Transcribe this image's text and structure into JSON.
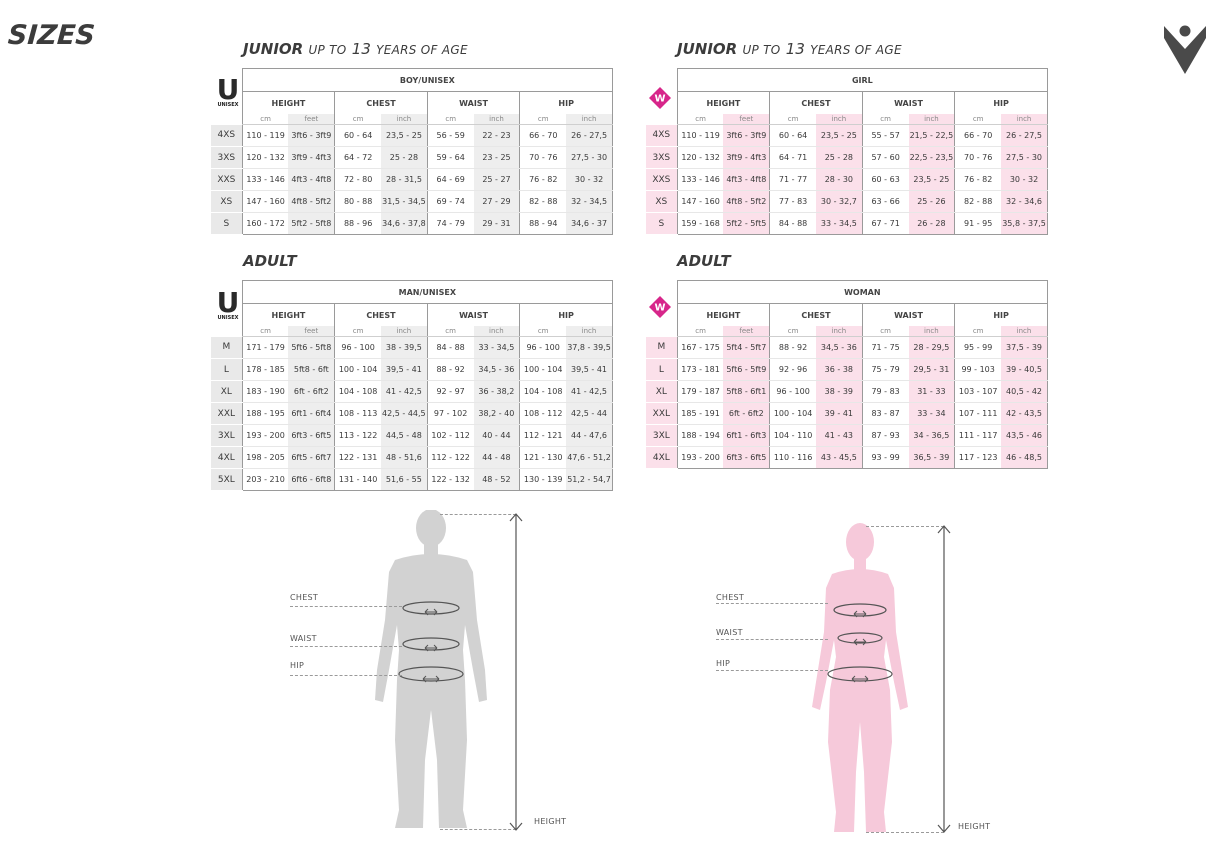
{
  "page": {
    "title": "SIZES",
    "logo_icon": "macron-logo-icon"
  },
  "titles": {
    "junior_main": "JUNIOR",
    "junior_sub_pre": "UP TO",
    "junior_sub_num": "13",
    "junior_sub_post": "YEARS OF AGE",
    "adult_main": "ADULT"
  },
  "badges": {
    "unisex_letter": "U",
    "unisex_label": "UNISEX",
    "woman_letter": "W"
  },
  "colors": {
    "male_alt": "#eeeeee",
    "female_alt": "#fbe0ea",
    "female_figure": "#f6c9da",
    "male_figure": "#d2d2d2",
    "woman_badge": "#d7268a"
  },
  "table_headers": {
    "columns": [
      "HEIGHT",
      "CHEST",
      "WAIST",
      "HIP"
    ],
    "units": [
      "cm",
      "feet",
      "cm",
      "inch",
      "cm",
      "inch",
      "cm",
      "inch"
    ]
  },
  "tables": [
    {
      "group": "BOY/UNISEX",
      "rows": [
        {
          "size": "4XS",
          "cells": [
            "110 - 119",
            "3ft6 - 3ft9",
            "60 - 64",
            "23,5 - 25",
            "56 - 59",
            "22 - 23",
            "66 - 70",
            "26 - 27,5"
          ]
        },
        {
          "size": "3XS",
          "cells": [
            "120 - 132",
            "3ft9 - 4ft3",
            "64 - 72",
            "25 - 28",
            "59 - 64",
            "23 - 25",
            "70 - 76",
            "27,5 - 30"
          ]
        },
        {
          "size": "XXS",
          "cells": [
            "133 - 146",
            "4ft3 - 4ft8",
            "72 - 80",
            "28 - 31,5",
            "64 - 69",
            "25 - 27",
            "76 - 82",
            "30 - 32"
          ]
        },
        {
          "size": "XS",
          "cells": [
            "147 - 160",
            "4ft8 - 5ft2",
            "80 - 88",
            "31,5 - 34,5",
            "69 - 74",
            "27 - 29",
            "82 - 88",
            "32 - 34,5"
          ]
        },
        {
          "size": "S",
          "cells": [
            "160 - 172",
            "5ft2 - 5ft8",
            "88 - 96",
            "34,6 - 37,8",
            "74 - 79",
            "29 - 31",
            "88 - 94",
            "34,6 - 37"
          ]
        }
      ]
    },
    {
      "group": "GIRL",
      "rows": [
        {
          "size": "4XS",
          "cells": [
            "110 - 119",
            "3ft6 - 3ft9",
            "60 - 64",
            "23,5 - 25",
            "55 - 57",
            "21,5 - 22,5",
            "66 - 70",
            "26 - 27,5"
          ]
        },
        {
          "size": "3XS",
          "cells": [
            "120 - 132",
            "3ft9 - 4ft3",
            "64 - 71",
            "25 - 28",
            "57 - 60",
            "22,5 - 23,5",
            "70 - 76",
            "27,5 - 30"
          ]
        },
        {
          "size": "XXS",
          "cells": [
            "133 - 146",
            "4ft3 - 4ft8",
            "71 - 77",
            "28 - 30",
            "60 - 63",
            "23,5 - 25",
            "76 - 82",
            "30 - 32"
          ]
        },
        {
          "size": "XS",
          "cells": [
            "147 - 160",
            "4ft8 - 5ft2",
            "77 - 83",
            "30 - 32,7",
            "63 - 66",
            "25 - 26",
            "82 - 88",
            "32 - 34,6"
          ]
        },
        {
          "size": "S",
          "cells": [
            "159 - 168",
            "5ft2 - 5ft5",
            "84 - 88",
            "33 - 34,5",
            "67 - 71",
            "26 - 28",
            "91 - 95",
            "35,8 - 37,5"
          ]
        }
      ]
    },
    {
      "group": "MAN/UNISEX",
      "rows": [
        {
          "size": "M",
          "cells": [
            "171 - 179",
            "5ft6 - 5ft8",
            "96 - 100",
            "38 - 39,5",
            "84 - 88",
            "33 - 34,5",
            "96 - 100",
            "37,8 - 39,5"
          ]
        },
        {
          "size": "L",
          "cells": [
            "178 - 185",
            "5ft8 - 6ft",
            "100 - 104",
            "39,5 - 41",
            "88 - 92",
            "34,5 - 36",
            "100 - 104",
            "39,5 - 41"
          ]
        },
        {
          "size": "XL",
          "cells": [
            "183 - 190",
            "6ft - 6ft2",
            "104 - 108",
            "41 - 42,5",
            "92 - 97",
            "36 - 38,2",
            "104 - 108",
            "41 - 42,5"
          ]
        },
        {
          "size": "XXL",
          "cells": [
            "188 - 195",
            "6ft1 - 6ft4",
            "108 - 113",
            "42,5 - 44,5",
            "97 - 102",
            "38,2 - 40",
            "108 - 112",
            "42,5 - 44"
          ]
        },
        {
          "size": "3XL",
          "cells": [
            "193 - 200",
            "6ft3 - 6ft5",
            "113 - 122",
            "44,5 - 48",
            "102 - 112",
            "40 - 44",
            "112 - 121",
            "44 - 47,6"
          ]
        },
        {
          "size": "4XL",
          "cells": [
            "198 - 205",
            "6ft5 - 6ft7",
            "122 - 131",
            "48 - 51,6",
            "112 - 122",
            "44 - 48",
            "121 - 130",
            "47,6 - 51,2"
          ]
        },
        {
          "size": "5XL",
          "cells": [
            "203 - 210",
            "6ft6 - 6ft8",
            "131 - 140",
            "51,6 - 55",
            "122 - 132",
            "48 - 52",
            "130 - 139",
            "51,2 - 54,7"
          ]
        }
      ]
    },
    {
      "group": "WOMAN",
      "rows": [
        {
          "size": "M",
          "cells": [
            "167 - 175",
            "5ft4 - 5ft7",
            "88 - 92",
            "34,5 - 36",
            "71 - 75",
            "28 - 29,5",
            "95 - 99",
            "37,5 - 39"
          ]
        },
        {
          "size": "L",
          "cells": [
            "173 - 181",
            "5ft6 - 5ft9",
            "92 - 96",
            "36 - 38",
            "75 - 79",
            "29,5 - 31",
            "99 - 103",
            "39 - 40,5"
          ]
        },
        {
          "size": "XL",
          "cells": [
            "179 - 187",
            "5ft8 - 6ft1",
            "96 - 100",
            "38 - 39",
            "79 - 83",
            "31 - 33",
            "103 - 107",
            "40,5 - 42"
          ]
        },
        {
          "size": "XXL",
          "cells": [
            "185 - 191",
            "6ft - 6ft2",
            "100 - 104",
            "39 - 41",
            "83 - 87",
            "33 - 34",
            "107 - 111",
            "42 - 43,5"
          ]
        },
        {
          "size": "3XL",
          "cells": [
            "188 - 194",
            "6ft1 - 6ft3",
            "104 - 110",
            "41 - 43",
            "87 - 93",
            "34 - 36,5",
            "111 - 117",
            "43,5 - 46"
          ]
        },
        {
          "size": "4XL",
          "cells": [
            "193 - 200",
            "6ft3 - 6ft5",
            "110 - 116",
            "43 - 45,5",
            "93 - 99",
            "36,5 - 39",
            "117 - 123",
            "46 - 48,5"
          ]
        }
      ]
    }
  ],
  "figures": {
    "man": {
      "chest": "CHEST",
      "waist": "WAIST",
      "hip": "HIP",
      "height": "HEIGHT"
    },
    "woman": {
      "title": "WOMAN",
      "chest": "CHEST",
      "waist": "WAIST",
      "hip": "HIP",
      "height": "HEIGHT"
    }
  }
}
